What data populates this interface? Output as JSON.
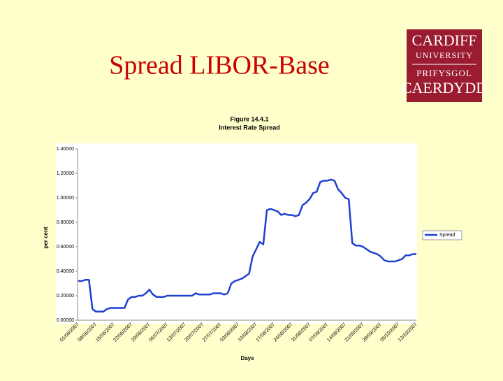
{
  "slide_title": "Spread LIBOR-Base",
  "logo": {
    "line1": "CARDIFF",
    "line2": "UNIVERSITY",
    "line3": "PRIFYSGOL",
    "line4": "CAERDYDD"
  },
  "chart_data": {
    "type": "line",
    "title": "Figure 14.4.1",
    "subtitle": "Interest Rate Spread",
    "x_label": "Days",
    "y_label": "per cent",
    "categories": [
      "01/06/2007",
      null,
      null,
      null,
      null,
      "08/06/2007",
      null,
      null,
      null,
      null,
      "15/06/2007",
      null,
      null,
      null,
      null,
      "22/06/2007",
      null,
      null,
      null,
      null,
      "29/06/2007",
      null,
      null,
      null,
      null,
      "06/07/2007",
      null,
      null,
      null,
      null,
      "13/07/2007",
      null,
      null,
      null,
      null,
      "20/07/2007",
      null,
      null,
      null,
      null,
      "27/07/2007",
      null,
      null,
      null,
      null,
      "03/08/2007",
      null,
      null,
      null,
      null,
      "10/08/2007",
      null,
      null,
      null,
      null,
      "17/08/2007",
      null,
      null,
      null,
      null,
      "24/08/2007",
      null,
      null,
      null,
      null,
      "31/08/2007",
      null,
      null,
      null,
      null,
      "07/09/2007",
      null,
      null,
      null,
      null,
      "14/09/2007",
      null,
      null,
      null,
      null,
      "21/09/2007",
      null,
      null,
      null,
      null,
      "28/09/2007",
      null,
      null,
      null,
      null,
      "05/10/2007",
      null,
      null,
      null,
      null,
      "12/10/2007"
    ],
    "series": [
      {
        "name": "Spread",
        "color": "#1f3fd0",
        "values": [
          0.32,
          0.32,
          0.33,
          0.33,
          0.09,
          0.07,
          0.07,
          0.07,
          0.09,
          0.1,
          0.1,
          0.1,
          0.1,
          0.1,
          0.17,
          0.19,
          0.19,
          0.2,
          0.2,
          0.22,
          0.25,
          0.21,
          0.19,
          0.19,
          0.19,
          0.2,
          0.2,
          0.2,
          0.2,
          0.2,
          0.2,
          0.2,
          0.2,
          0.22,
          0.21,
          0.21,
          0.21,
          0.21,
          0.22,
          0.22,
          0.22,
          0.21,
          0.22,
          0.3,
          0.32,
          0.33,
          0.34,
          0.36,
          0.38,
          0.52,
          0.58,
          0.64,
          0.62,
          0.9,
          0.91,
          0.9,
          0.89,
          0.86,
          0.87,
          0.86,
          0.86,
          0.85,
          0.86,
          0.94,
          0.96,
          0.99,
          1.04,
          1.05,
          1.13,
          1.14,
          1.14,
          1.15,
          1.14,
          1.07,
          1.04,
          1.0,
          0.99,
          0.63,
          0.61,
          0.61,
          0.6,
          0.58,
          0.56,
          0.55,
          0.54,
          0.52,
          0.49,
          0.48,
          0.48,
          0.48,
          0.49,
          0.5,
          0.53,
          0.53,
          0.54,
          0.54
        ]
      }
    ],
    "ylim": [
      0,
      1.4
    ],
    "yticks": [
      {
        "value": 0,
        "label": "0.00000"
      },
      {
        "value": 0.2,
        "label": "0.20000"
      },
      {
        "value": 0.4,
        "label": "0.40000"
      },
      {
        "value": 0.6,
        "label": "0.60000"
      },
      {
        "value": 0.8,
        "label": "0.80000"
      },
      {
        "value": 1.0,
        "label": "1.00000"
      },
      {
        "value": 1.2,
        "label": "1.20000"
      },
      {
        "value": 1.4,
        "label": "1.40000"
      }
    ],
    "legend": "right"
  }
}
